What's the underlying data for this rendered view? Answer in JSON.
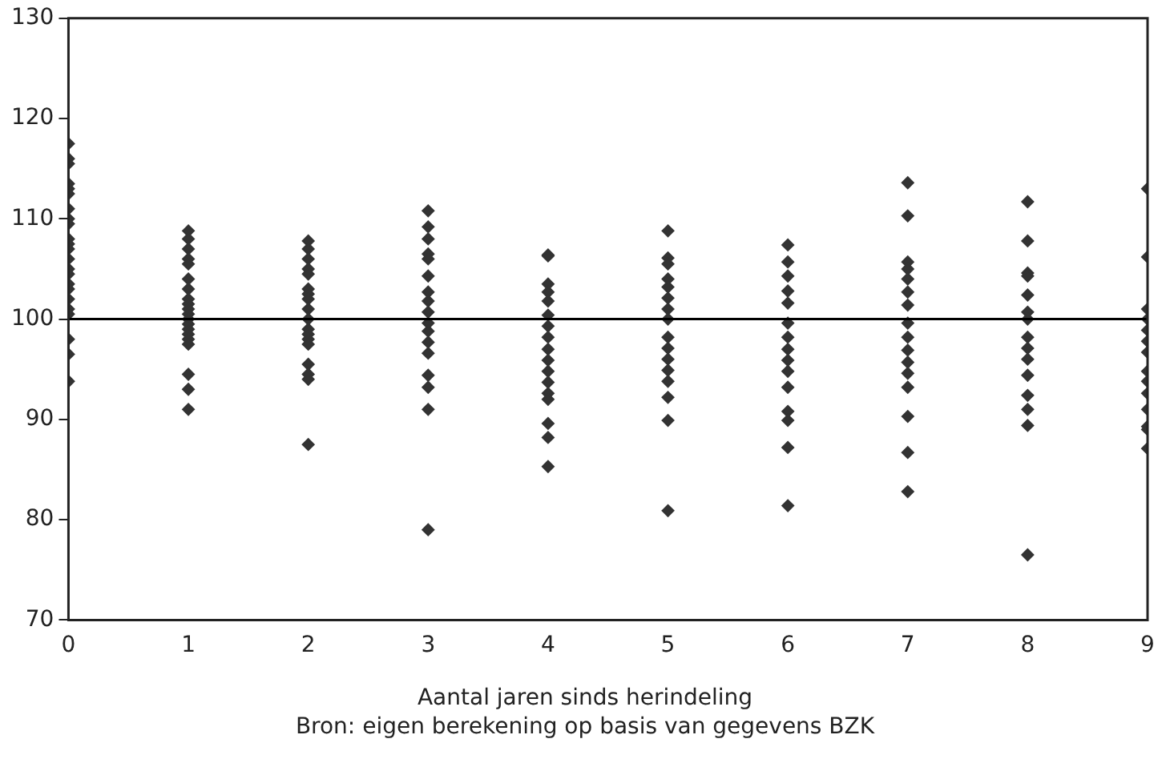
{
  "chart_data": {
    "type": "scatter",
    "xlabel": "Aantal jaren sinds herindeling",
    "annotations": [
      "Bron: eigen berekening op basis van gegevens BZK"
    ],
    "xlim": [
      0,
      9
    ],
    "xticks": [
      0,
      1,
      2,
      3,
      4,
      5,
      6,
      7,
      8,
      9
    ],
    "ylim": [
      70,
      130
    ],
    "yticks": [
      70,
      80,
      90,
      100,
      110,
      120,
      130
    ],
    "grid": false,
    "legend": false,
    "marker": "diamond",
    "ref_lines": [
      {
        "axis": "y",
        "value": 100,
        "color": "#000000"
      }
    ],
    "series": [
      {
        "color": "#333333",
        "x": [
          0,
          0,
          0,
          0,
          0,
          0,
          0,
          0,
          0,
          0,
          0,
          0,
          0,
          0,
          0,
          0,
          0,
          0,
          0,
          0,
          0,
          0,
          0,
          1,
          1,
          1,
          1,
          1,
          1,
          1,
          1,
          1,
          1,
          1,
          1,
          1,
          1,
          1,
          1,
          1,
          1,
          1,
          1,
          2,
          2,
          2,
          2,
          2,
          2,
          2,
          2,
          2,
          2,
          2,
          2,
          2,
          2,
          2,
          2,
          2,
          2,
          3,
          3,
          3,
          3,
          3,
          3,
          3,
          3,
          3,
          3,
          3,
          3,
          3,
          3,
          3,
          3,
          3,
          4,
          4,
          4,
          4,
          4,
          4,
          4,
          4,
          4,
          4,
          4,
          4,
          4,
          4,
          4,
          4,
          4,
          5,
          5,
          5,
          5,
          5,
          5,
          5,
          5,
          5,
          5,
          5,
          5,
          5,
          5,
          5,
          5,
          6,
          6,
          6,
          6,
          6,
          6,
          6,
          6,
          6,
          6,
          6,
          6,
          6,
          6,
          6,
          7,
          7,
          7,
          7,
          7,
          7,
          7,
          7,
          7,
          7,
          7,
          7,
          7,
          7,
          7,
          7,
          8,
          8,
          8,
          8,
          8,
          8,
          8,
          8,
          8,
          8,
          8,
          8,
          8,
          8,
          8,
          9,
          9,
          9,
          9,
          9,
          9,
          9,
          9,
          9,
          9,
          9,
          9,
          9,
          9
        ],
        "values": [
          117.5,
          116,
          115.5,
          113.5,
          113,
          112.5,
          111,
          110,
          109.5,
          108,
          107.5,
          107,
          106,
          105,
          104.5,
          103.5,
          103,
          102,
          101,
          100.5,
          98,
          96.5,
          93.8,
          108.8,
          108,
          107,
          106,
          105.5,
          104,
          103,
          102,
          101.5,
          101,
          100.5,
          100,
          99.5,
          99,
          98.5,
          98,
          97.5,
          94.5,
          93,
          91,
          107.8,
          107,
          106,
          105,
          104.5,
          103,
          102.5,
          102,
          101,
          100,
          99,
          98.5,
          98,
          97.5,
          95.5,
          94.5,
          94,
          87.5,
          110.8,
          109.2,
          108,
          106.5,
          106,
          104.3,
          102.7,
          101.8,
          100.7,
          99.6,
          98.8,
          97.7,
          96.6,
          94.4,
          93.2,
          91,
          79,
          106.4,
          106.3,
          103.5,
          102.7,
          101.8,
          100.4,
          99.3,
          98.2,
          97,
          95.9,
          94.8,
          93.7,
          92.6,
          92,
          89.6,
          88.2,
          85.3,
          108.8,
          106.1,
          105.5,
          104,
          103.2,
          102.1,
          101,
          100,
          98.2,
          97.1,
          96,
          94.9,
          93.8,
          92.2,
          89.9,
          80.9,
          107.4,
          105.7,
          104.3,
          102.8,
          101.6,
          99.6,
          98.2,
          97,
          95.9,
          94.8,
          93.2,
          90.8,
          89.9,
          87.2,
          81.4,
          113.6,
          110.3,
          105.7,
          105,
          104,
          102.7,
          101.4,
          99.6,
          98.2,
          96.9,
          95.7,
          94.6,
          93.2,
          90.3,
          86.7,
          82.8,
          111.7,
          107.8,
          104.6,
          104.3,
          102.4,
          100.7,
          100,
          98.2,
          97.1,
          96,
          94.4,
          92.4,
          91,
          89.4,
          76.5,
          113,
          106.2,
          101,
          100,
          98.9,
          97.8,
          96.7,
          94.8,
          93.8,
          92.6,
          91,
          89.3,
          89,
          87.1
        ]
      }
    ]
  }
}
